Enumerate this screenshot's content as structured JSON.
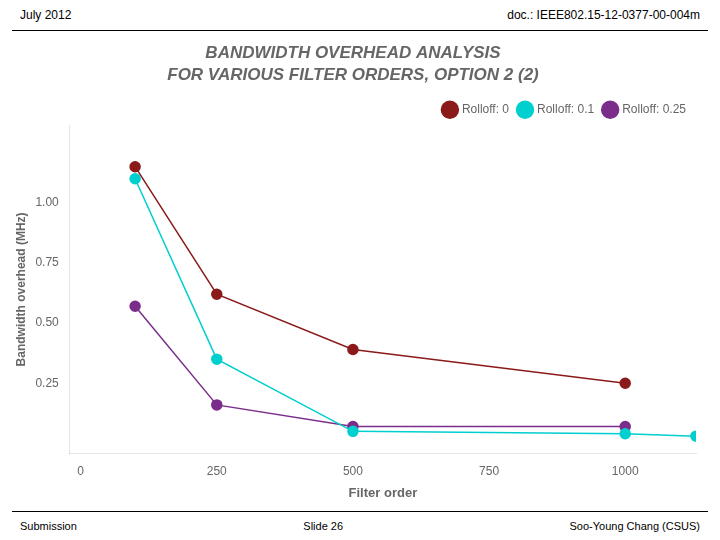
{
  "chart_data": {
    "type": "line",
    "title": "BANDWIDTH OVERHEAD ANALYSIS",
    "subtitle": "FOR VARIOUS FILTER ORDERS, OPTION 2 (2)",
    "annotations": [
      "July 2012",
      "doc.: IEEE802.15-12-0377-00-004m",
      "Submission",
      "Slide 26",
      "Soo-Young Chang (CSUS)"
    ],
    "x_label": "Filter order",
    "y_label": "Bandwidth overhead (MHz)",
    "xlim": [
      -20,
      1130
    ],
    "ylim": [
      -0.04,
      1.32
    ],
    "xticks": [
      0,
      250,
      500,
      750,
      1000
    ],
    "yticks": [
      0.25,
      {
        "value": 0.5,
        "label": "0.50"
      },
      0.75,
      {
        "value": 1.0,
        "label": "1.00"
      }
    ],
    "grid": false,
    "legend": "upper right",
    "series": [
      {
        "name": "Rolloff: 0",
        "color": "#8B1A1A",
        "marker": "circle",
        "x": [
          100,
          250,
          500,
          1000
        ],
        "values": [
          1.15,
          0.62,
          0.39,
          0.25
        ]
      },
      {
        "name": "Rolloff: 0.1",
        "color": "#00CFCF",
        "marker": "circle",
        "x": [
          100,
          250,
          500,
          1000,
          1130
        ],
        "values": [
          1.1,
          0.35,
          0.05,
          0.04,
          0.03
        ]
      },
      {
        "name": "Rolloff: 0.25",
        "color": "#7B2D8B",
        "marker": "circle",
        "x": [
          100,
          250,
          500,
          1000
        ],
        "values": [
          0.57,
          0.16,
          0.07,
          0.07
        ]
      }
    ]
  }
}
